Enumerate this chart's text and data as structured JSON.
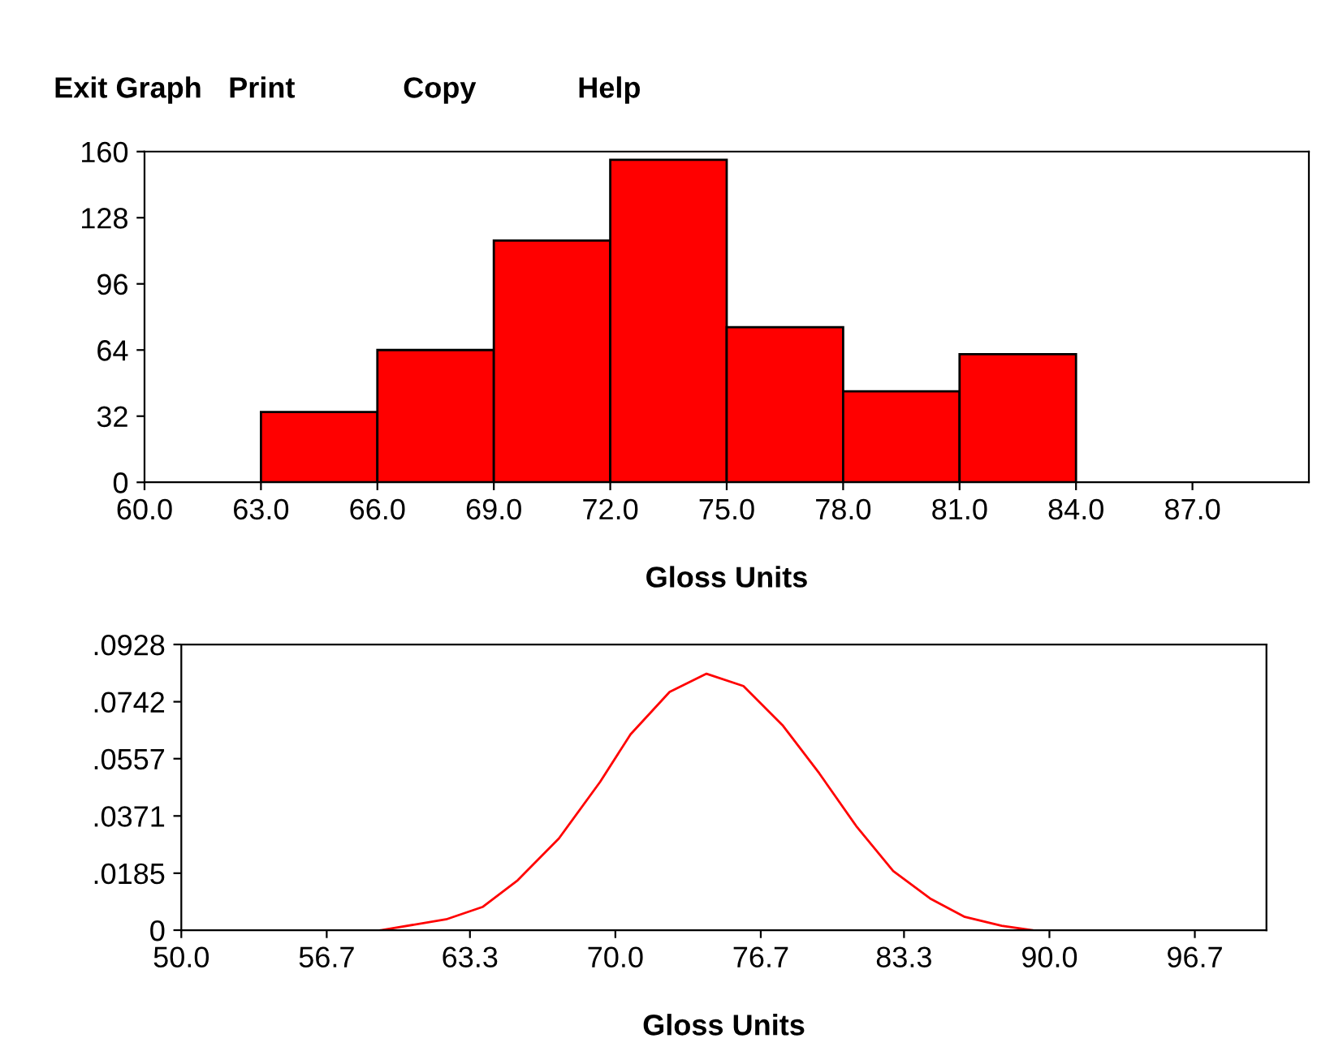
{
  "chart_data": [
    {
      "type": "histogram",
      "xlabel": "Gloss Units",
      "annotations": [
        "Exit Graph",
        "Print",
        "Copy",
        "Help"
      ],
      "bins": [
        63,
        66,
        69,
        72,
        75,
        78,
        81,
        84
      ],
      "values": [
        34,
        64,
        117,
        156,
        75,
        44,
        62
      ],
      "color": "#ff0000",
      "xlim": [
        60,
        90
      ],
      "xticks": [
        {
          "value": 60,
          "label": "60.0"
        },
        {
          "value": 63,
          "label": "63.0"
        },
        {
          "value": 66,
          "label": "66.0"
        },
        {
          "value": 69,
          "label": "69.0"
        },
        {
          "value": 72,
          "label": "72.0"
        },
        {
          "value": 75,
          "label": "75.0"
        },
        {
          "value": 78,
          "label": "78.0"
        },
        {
          "value": 81,
          "label": "81.0"
        },
        {
          "value": 84,
          "label": "84.0"
        },
        {
          "value": 87,
          "label": "87.0"
        }
      ],
      "ylim": [
        0,
        160
      ],
      "yticks": [
        0,
        32,
        64,
        96,
        128,
        160
      ],
      "grid": false,
      "legend": false
    },
    {
      "type": "line",
      "xlabel": "Gloss Units",
      "series": [
        {
          "color": "#ff0000",
          "x": [
            59.2,
            62.2,
            63.9,
            65.5,
            67.4,
            69.3,
            70.7,
            72.5,
            74.2,
            75.9,
            77.7,
            79.4,
            81.1,
            82.8,
            84.5,
            86.1,
            87.8,
            89.2
          ],
          "values": [
            0,
            0.0035,
            0.0076,
            0.0162,
            0.0298,
            0.0482,
            0.0636,
            0.0774,
            0.0833,
            0.0793,
            0.0666,
            0.0509,
            0.0338,
            0.0192,
            0.0103,
            0.0043,
            0.0014,
            0
          ]
        }
      ],
      "xlim": [
        50,
        100
      ],
      "xticks": [
        {
          "value": 50,
          "label": "50.0"
        },
        56.7,
        63.3,
        {
          "value": 70,
          "label": "70.0"
        },
        76.7,
        83.3,
        {
          "value": 90,
          "label": "90.0"
        },
        96.7
      ],
      "ylim": [
        0,
        0.0928
      ],
      "yticks": [
        {
          "value": 0,
          "label": "0"
        },
        {
          "value": 0.0185,
          "label": ".0185"
        },
        {
          "value": 0.0371,
          "label": ".0371"
        },
        {
          "value": 0.0557,
          "label": ".0557"
        },
        {
          "value": 0.0742,
          "label": ".0742"
        },
        {
          "value": 0.0928,
          "label": ".0928"
        }
      ],
      "marker": "none",
      "line_style": "solid",
      "grid": false,
      "legend": false
    }
  ]
}
